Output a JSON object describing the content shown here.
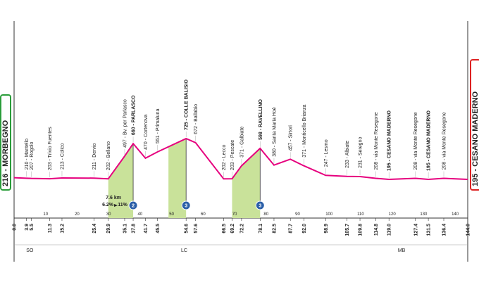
{
  "chart_data": {
    "type": "area",
    "x": [
      0,
      3.9,
      5.5,
      11.3,
      15.2,
      25.4,
      29.9,
      35.1,
      37.8,
      41.7,
      45.5,
      54.6,
      57.6,
      66.5,
      69.2,
      72.2,
      78.1,
      82.5,
      87.7,
      92.0,
      98.9,
      105.7,
      109.8,
      114.8,
      119.0,
      127.4,
      131.5,
      136.4,
      144.0
    ],
    "x_labels": [
      "0.0",
      "3.9",
      "5.5",
      "11.3",
      "15.2",
      "25.4",
      "29.9",
      "35.1",
      "37.8",
      "41.7",
      "45.5",
      "54.6",
      "57.6",
      "66.5",
      "69.2",
      "72.2",
      "78.1",
      "82.5",
      "87.7",
      "92.0",
      "98.9",
      "105.7",
      "109.8",
      "114.8",
      "119.0",
      "127.4",
      "131.5",
      "136.4",
      "144.0"
    ],
    "values": [
      216,
      210,
      207,
      203,
      213,
      211,
      202,
      497,
      660,
      470,
      551,
      725,
      672,
      202,
      203,
      371,
      598,
      380,
      457,
      371,
      247,
      233,
      231,
      208,
      195,
      208,
      195,
      208,
      195
    ],
    "value_labels": [
      "216 - MORBEGNO",
      "210 - Mantello",
      "207 - Rogolo",
      "203 - Trivio Fuentes",
      "213 - Colico",
      "211 - Dervio",
      "202 - Bellano",
      "497 - Bv. per Parlasco",
      "660 - PARLASCO",
      "470 - Cortenova",
      "551 - Primaluna",
      "725 - COLLE BALISIO",
      "672 - Ballabio",
      "202 - Lecco",
      "203 - Pescate",
      "371 - Galbiate",
      "598 - RAVELLINO",
      "380 - Santa Maria Hoè",
      "457 - Sirtori",
      "371 - Monticello Brianza",
      "247 - Lesmo",
      "233 - Albiate",
      "231 - Seregno",
      "208 - via Monte Resegone",
      "195 - CESANO MADERNO",
      "208 - via Monte Resegone",
      "195 - CESANO MADERNO",
      "208 - via Monte Resegone",
      "195 - CESANO MADERNO"
    ],
    "color": "#e6007e",
    "xticks": [
      10,
      20,
      30,
      40,
      50,
      60,
      70,
      80,
      90,
      100,
      110,
      120,
      130,
      140
    ],
    "climbs": [
      {
        "from": 29.9,
        "to": 37.8,
        "category": 2
      },
      {
        "from": 49.0,
        "to": 54.6,
        "category": 3
      },
      {
        "from": 69.2,
        "to": 78.1,
        "category": 3
      }
    ],
    "climb_note": {
      "length": "7.6 km",
      "avg": "6.2%",
      "max": "11%"
    },
    "sectors": [
      {
        "name": "SO",
        "at": 5
      },
      {
        "name": "LC",
        "at": 54
      },
      {
        "name": "MB",
        "at": 123
      }
    ]
  }
}
